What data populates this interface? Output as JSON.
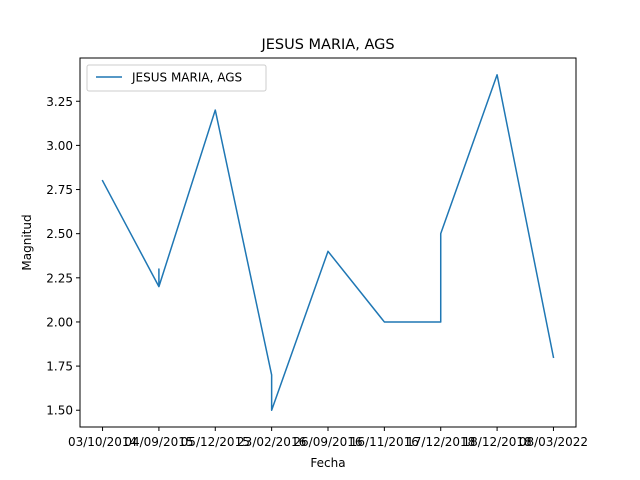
{
  "chart_data": {
    "type": "line",
    "title": "JESUS MARIA, AGS",
    "xlabel": "Fecha",
    "ylabel": "Magnitud",
    "x_tick_labels": [
      "03/10/2014",
      "04/09/2015",
      "05/12/2015",
      "23/02/2016",
      "26/09/2016",
      "16/11/2016",
      "17/12/2018",
      "18/12/2018",
      "08/03/2022"
    ],
    "y_ticks": [
      1.5,
      1.75,
      2.0,
      2.25,
      2.5,
      2.75,
      3.0,
      3.25
    ],
    "y_tick_labels": [
      "1.50",
      "1.75",
      "2.00",
      "2.25",
      "2.50",
      "2.75",
      "3.00",
      "3.25"
    ],
    "ylim": [
      1.405,
      3.495
    ],
    "xlim": [
      -0.4,
      8.4
    ],
    "legend_position": "upper-left",
    "series": [
      {
        "name": "JESUS MARIA, AGS",
        "color": "#1f77b4",
        "points": [
          {
            "x": 0,
            "y": 2.8
          },
          {
            "x": 1,
            "y": 2.2
          },
          {
            "x": 1,
            "y": 2.3
          },
          {
            "x": 1,
            "y": 2.2
          },
          {
            "x": 2,
            "y": 3.2
          },
          {
            "x": 3,
            "y": 1.7
          },
          {
            "x": 3,
            "y": 1.5
          },
          {
            "x": 4,
            "y": 2.4
          },
          {
            "x": 5,
            "y": 2.0
          },
          {
            "x": 6,
            "y": 2.0
          },
          {
            "x": 6,
            "y": 2.5
          },
          {
            "x": 7,
            "y": 3.4
          },
          {
            "x": 8,
            "y": 1.8
          }
        ]
      }
    ]
  }
}
